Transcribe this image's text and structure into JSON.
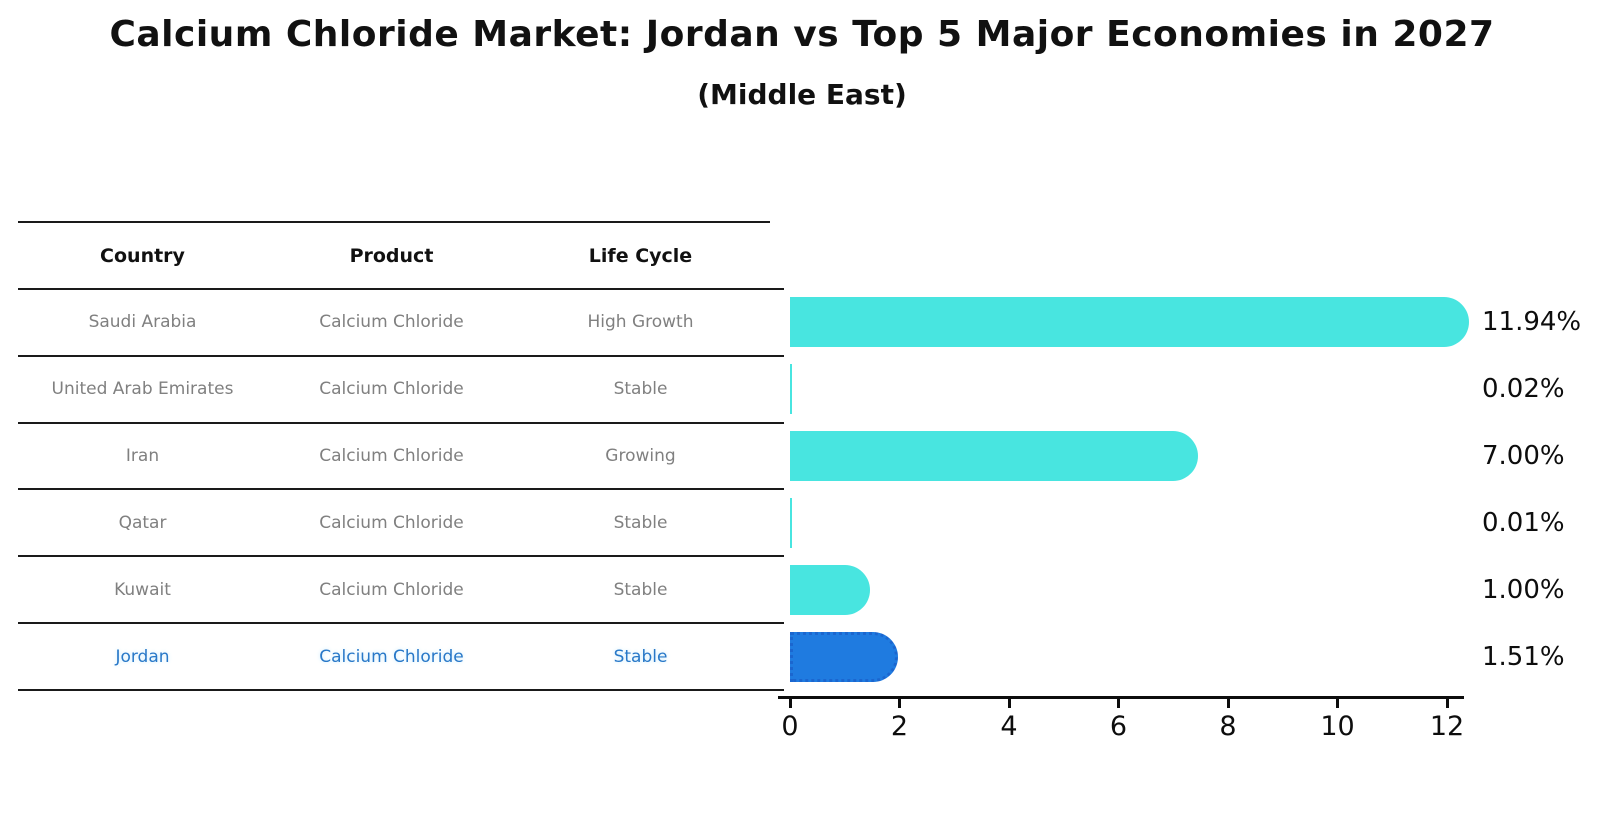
{
  "title": "Calcium Chloride Market: Jordan vs Top 5 Major Economies in 2027",
  "subtitle": "(Middle East)",
  "table": {
    "headers": [
      "Country",
      "Product",
      "Life Cycle"
    ],
    "rows": [
      {
        "country": "Saudi Arabia",
        "product": "Calcium Chloride",
        "life_cycle": "High Growth",
        "highlighted": false
      },
      {
        "country": "United Arab Emirates",
        "product": "Calcium Chloride",
        "life_cycle": "Stable",
        "highlighted": false
      },
      {
        "country": "Iran",
        "product": "Calcium Chloride",
        "life_cycle": "Growing",
        "highlighted": false
      },
      {
        "country": "Qatar",
        "product": "Calcium Chloride",
        "life_cycle": "Stable",
        "highlighted": false
      },
      {
        "country": "Kuwait",
        "product": "Calcium Chloride",
        "life_cycle": "Stable",
        "highlighted": false
      },
      {
        "country": "Jordan",
        "product": "Calcium Chloride",
        "life_cycle": "Stable",
        "highlighted": true
      }
    ]
  },
  "chart_data": {
    "type": "bar",
    "orientation": "horizontal",
    "title": "Calcium Chloride Market: Jordan vs Top 5 Major Economies in 2027",
    "subtitle": "(Middle East)",
    "categories": [
      "Saudi Arabia",
      "United Arab Emirates",
      "Iran",
      "Qatar",
      "Kuwait",
      "Jordan"
    ],
    "values": [
      11.94,
      0.02,
      7.0,
      0.01,
      1.0,
      1.51
    ],
    "value_labels": [
      "11.94%",
      "0.02%",
      "7.00%",
      "0.01%",
      "1.00%",
      "1.51%"
    ],
    "xlabel": "",
    "ylabel": "",
    "xlim": [
      0,
      12.4
    ],
    "xticks": [
      0,
      2,
      4,
      6,
      8,
      10,
      12
    ],
    "grid": false,
    "legend": false,
    "bar_color": "#48E5E0",
    "highlight_color": "#1F7BE0",
    "highlight_index": 5,
    "highlight_border_style": "dotted"
  },
  "colors": {
    "background": "#ffffff",
    "title_text": "#111111",
    "header_text": "#111111",
    "cell_text": "#808080",
    "highlight_text": "#2878C8",
    "table_line": "#1a1a1a",
    "axis": "#0d0d0d",
    "value_label_text": "#0d0d0d"
  }
}
